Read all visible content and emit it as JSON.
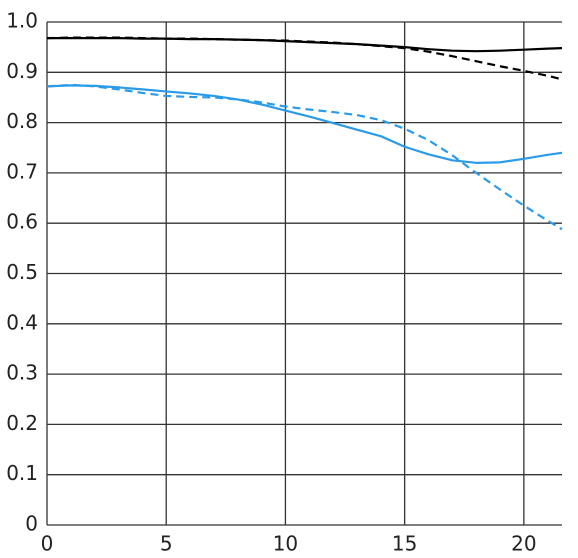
{
  "chart_data": {
    "type": "line",
    "x": [
      0,
      1,
      2,
      3,
      4,
      5,
      6,
      7,
      8,
      9,
      10,
      11,
      12,
      13,
      14,
      15,
      16,
      17,
      18,
      19,
      20,
      21,
      21.6
    ],
    "series": [
      {
        "color": "#000000",
        "dashed": false,
        "values": [
          0.968,
          0.968,
          0.968,
          0.968,
          0.967,
          0.967,
          0.966,
          0.966,
          0.965,
          0.964,
          0.962,
          0.96,
          0.958,
          0.956,
          0.953,
          0.95,
          0.946,
          0.943,
          0.942,
          0.943,
          0.945,
          0.947,
          0.948
        ]
      },
      {
        "color": "#000000",
        "dashed": true,
        "values": [
          0.968,
          0.969,
          0.969,
          0.969,
          0.968,
          0.967,
          0.967,
          0.966,
          0.965,
          0.964,
          0.963,
          0.961,
          0.959,
          0.956,
          0.952,
          0.948,
          0.941,
          0.932,
          0.922,
          0.912,
          0.903,
          0.893,
          0.886
        ]
      },
      {
        "color": "#2b9be8",
        "dashed": false,
        "values": [
          0.872,
          0.874,
          0.873,
          0.87,
          0.866,
          0.862,
          0.858,
          0.853,
          0.846,
          0.836,
          0.824,
          0.812,
          0.799,
          0.786,
          0.773,
          0.752,
          0.737,
          0.725,
          0.72,
          0.721,
          0.728,
          0.736,
          0.74
        ]
      },
      {
        "color": "#2b9be8",
        "dashed": true,
        "values": [
          0.872,
          0.875,
          0.872,
          0.866,
          0.859,
          0.853,
          0.851,
          0.85,
          0.846,
          0.84,
          0.832,
          0.826,
          0.821,
          0.815,
          0.805,
          0.788,
          0.765,
          0.735,
          0.7,
          0.667,
          0.635,
          0.605,
          0.588
        ]
      }
    ],
    "xlim": [
      0,
      21.6
    ],
    "ylim": [
      0,
      1
    ],
    "xticks": [
      0,
      5,
      10,
      15,
      20
    ],
    "yticks": [
      0,
      0.1,
      0.2,
      0.3,
      0.4,
      0.5,
      0.6,
      0.7,
      0.8,
      0.9,
      {
        "value": 1,
        "label": "1.0"
      }
    ],
    "grid": true
  }
}
